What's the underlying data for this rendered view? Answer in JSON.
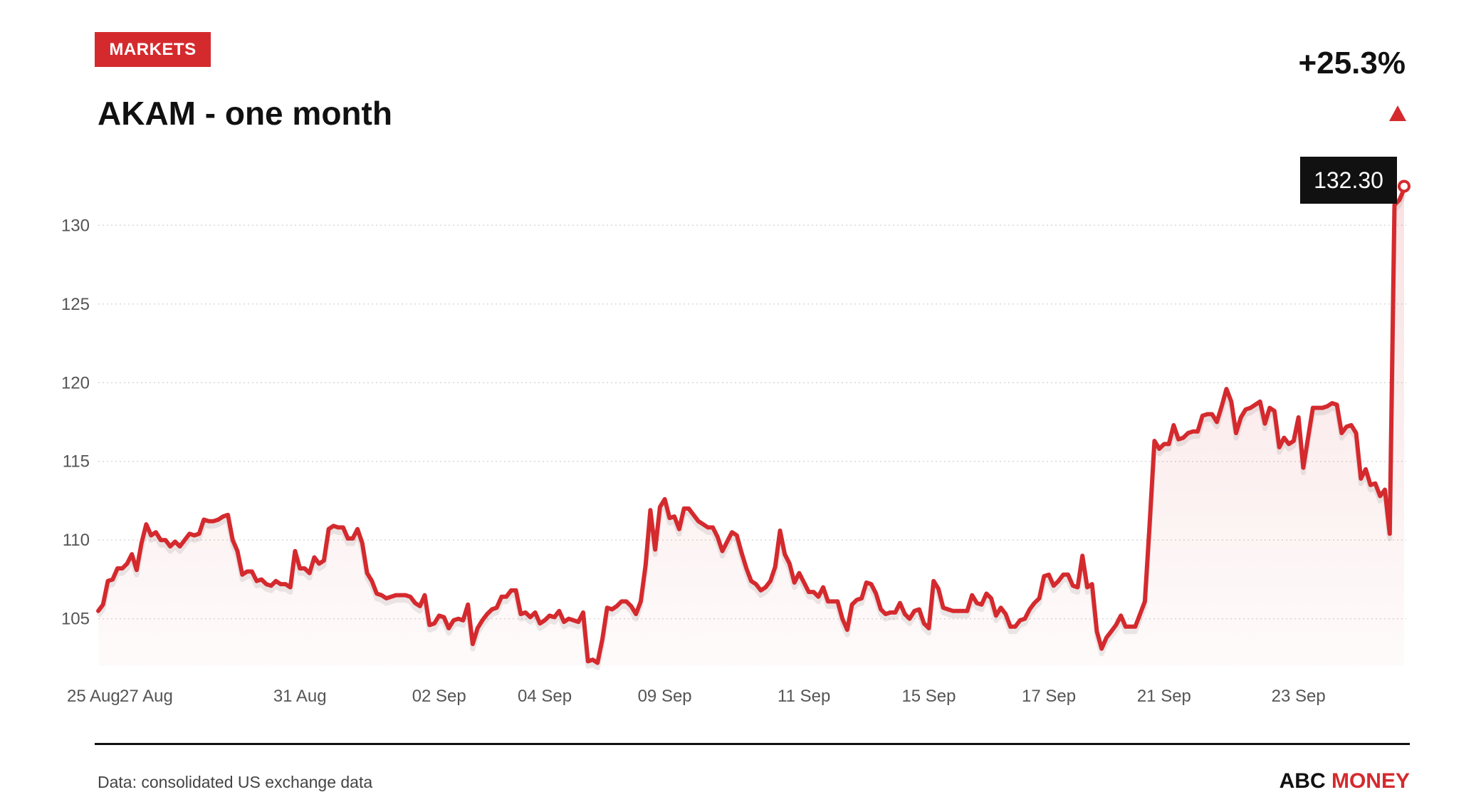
{
  "header": {
    "badge": "MARKETS",
    "title": "AKAM - one month",
    "change": "+25.3%",
    "last_value": "132.30"
  },
  "footer": {
    "source": "Data: consolidated US exchange data",
    "brand_part1": "ABC ",
    "brand_part2": "MONEY"
  },
  "colors": {
    "accent": "#d42a2e",
    "text": "#111111",
    "grid": "#d9d9d9",
    "axis_text": "#555555"
  },
  "chart_data": {
    "type": "line",
    "title": "AKAM - one month",
    "xlabel": "",
    "ylabel": "",
    "ylim": [
      102,
      133
    ],
    "yticks": [
      105,
      110,
      115,
      120,
      125,
      130
    ],
    "grid": true,
    "x_tick_labels": [
      {
        "label": "25 Aug",
        "index": 0
      },
      {
        "label": "27 Aug",
        "index": 10
      },
      {
        "label": "31 Aug",
        "index": 42
      },
      {
        "label": "02 Sep",
        "index": 71
      },
      {
        "label": "04 Sep",
        "index": 93
      },
      {
        "label": "09 Sep",
        "index": 118
      },
      {
        "label": "11 Sep",
        "index": 147
      },
      {
        "label": "15 Sep",
        "index": 173
      },
      {
        "label": "17 Sep",
        "index": 198
      },
      {
        "label": "21 Sep",
        "index": 222
      },
      {
        "label": "23 Sep",
        "index": 250
      }
    ],
    "series": [
      {
        "values": [
          105.5,
          105.9,
          107.4,
          107.5,
          108.2,
          108.2,
          108.5,
          109.1,
          108.1,
          109.8,
          111.0,
          110.3,
          110.5,
          110.0,
          110.0,
          109.6,
          109.9,
          109.6,
          110.0,
          110.4,
          110.3,
          110.4,
          111.3,
          111.2,
          111.2,
          111.3,
          111.5,
          111.6,
          110.0,
          109.3,
          107.8,
          108.0,
          108.0,
          107.4,
          107.5,
          107.2,
          107.1,
          107.4,
          107.2,
          107.2,
          107.0,
          109.3,
          108.2,
          108.2,
          107.9,
          108.9,
          108.5,
          108.7,
          110.7,
          110.9,
          110.8,
          110.8,
          110.1,
          110.1,
          110.7,
          109.8,
          107.9,
          107.4,
          106.6,
          106.5,
          106.3,
          106.4,
          106.5,
          106.5,
          106.5,
          106.4,
          106.0,
          105.8,
          106.5,
          104.6,
          104.7,
          105.2,
          105.1,
          104.4,
          104.9,
          105.0,
          104.9,
          105.9,
          103.4,
          104.4,
          104.9,
          105.3,
          105.6,
          105.7,
          106.4,
          106.4,
          106.8,
          106.8,
          105.3,
          105.4,
          105.1,
          105.4,
          104.7,
          104.9,
          105.2,
          105.1,
          105.5,
          104.8,
          105.0,
          104.9,
          104.8,
          105.4,
          102.3,
          102.4,
          102.2,
          103.7,
          105.7,
          105.6,
          105.8,
          106.1,
          106.1,
          105.8,
          105.3,
          106.1,
          108.4,
          111.9,
          109.4,
          112.1,
          112.6,
          111.4,
          111.5,
          110.7,
          112.0,
          112.0,
          111.6,
          111.2,
          111.0,
          110.8,
          110.8,
          110.2,
          109.3,
          109.9,
          110.5,
          110.3,
          109.2,
          108.2,
          107.4,
          107.2,
          106.8,
          107.0,
          107.4,
          108.3,
          110.6,
          109.1,
          108.5,
          107.3,
          107.9,
          107.3,
          106.7,
          106.7,
          106.4,
          107.0,
          106.1,
          106.1,
          106.1,
          105.0,
          104.3,
          105.9,
          106.2,
          106.3,
          107.3,
          107.2,
          106.6,
          105.6,
          105.3,
          105.4,
          105.4,
          106.0,
          105.3,
          105.0,
          105.5,
          105.6,
          104.7,
          104.4,
          107.4,
          106.9,
          105.7,
          105.6,
          105.5,
          105.5,
          105.5,
          105.5,
          106.5,
          106.0,
          105.9,
          106.6,
          106.3,
          105.2,
          105.7,
          105.3,
          104.5,
          104.5,
          104.9,
          105.0,
          105.6,
          106.0,
          106.3,
          107.7,
          107.8,
          107.1,
          107.4,
          107.8,
          107.8,
          107.1,
          107.0,
          109.0,
          107.0,
          107.2,
          104.2,
          103.1,
          103.8,
          104.2,
          104.6,
          105.2,
          104.5,
          104.5,
          104.5,
          105.3,
          106.1,
          111.0,
          116.3,
          115.8,
          116.1,
          116.1,
          117.3,
          116.4,
          116.5,
          116.8,
          116.9,
          116.9,
          117.9,
          118.0,
          118.0,
          117.5,
          118.5,
          119.6,
          118.8,
          116.8,
          117.8,
          118.3,
          118.4,
          118.6,
          118.8,
          117.4,
          118.4,
          118.2,
          115.9,
          116.5,
          116.1,
          116.3,
          117.8,
          114.6,
          116.5,
          118.4,
          118.4,
          118.4,
          118.5,
          118.7,
          118.6,
          116.8,
          117.2,
          117.3,
          116.8,
          113.9,
          114.5,
          113.5,
          113.6,
          112.8,
          113.2,
          110.4,
          131.3,
          131.6,
          132.3
        ]
      }
    ]
  }
}
